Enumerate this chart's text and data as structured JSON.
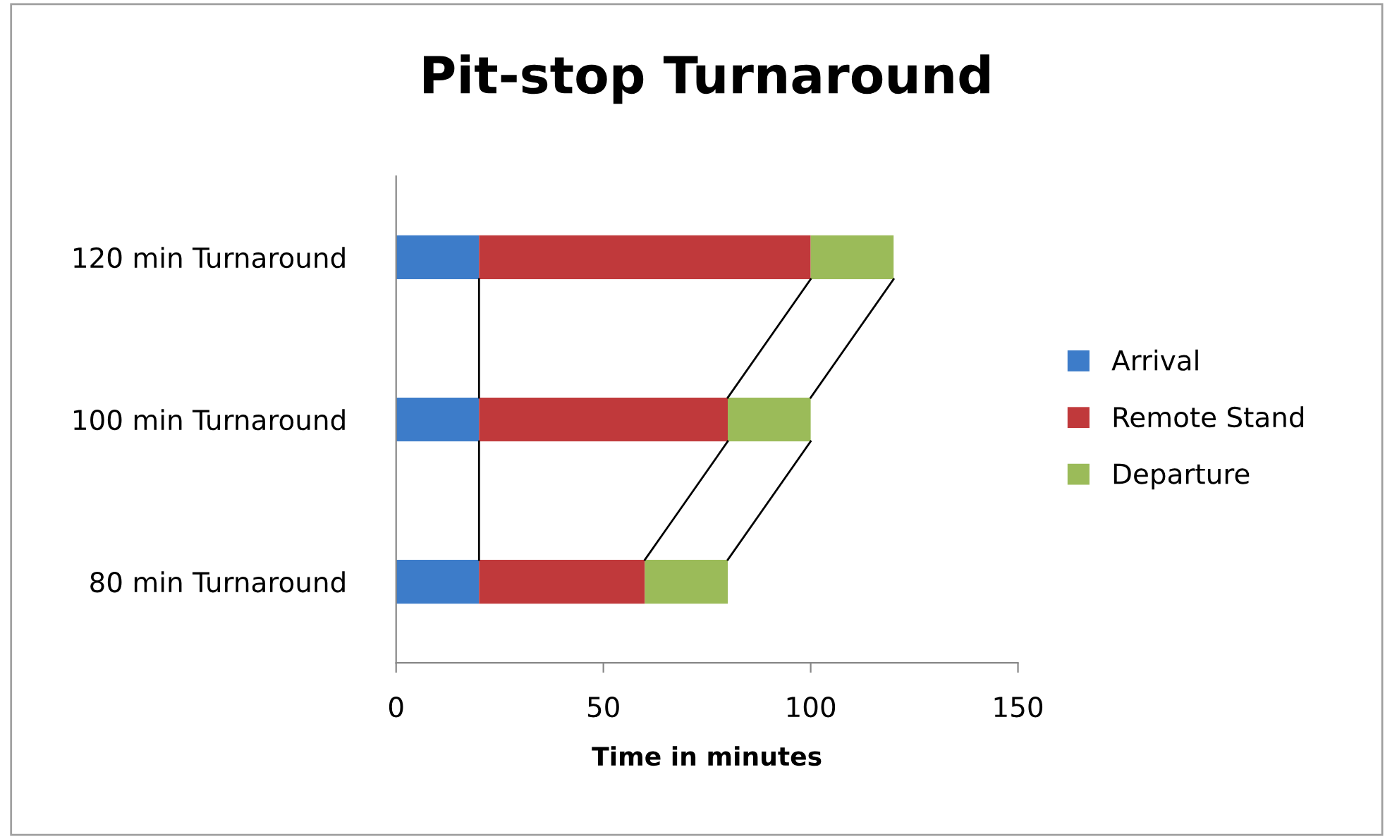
{
  "chart_data": {
    "type": "bar",
    "orientation": "horizontal",
    "stacked": true,
    "title": "Pit-stop Turnaround",
    "xlabel": "Time in minutes",
    "categories": [
      "120 min Turnaround",
      "100 min Turnaround",
      "80 min Turnaround"
    ],
    "series": [
      {
        "name": "Arrival",
        "color": "#3d7cc9",
        "values": [
          20,
          20,
          20
        ]
      },
      {
        "name": "Remote Stand",
        "color": "#c0393b",
        "values": [
          80,
          60,
          40
        ]
      },
      {
        "name": "Departure",
        "color": "#9bbb59",
        "values": [
          20,
          20,
          20
        ]
      }
    ],
    "xlim": [
      0,
      150
    ],
    "xticks": [
      0,
      50,
      100,
      150
    ],
    "grid": false,
    "legend": "right"
  }
}
